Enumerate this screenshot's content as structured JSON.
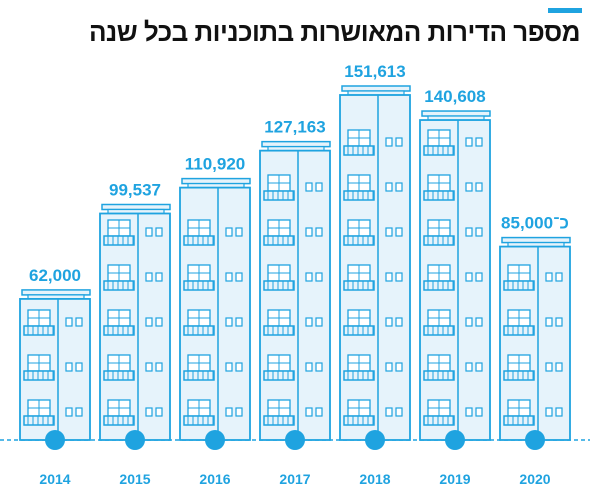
{
  "title": "מספר הדירות המאושרות בתוכניות בכל שנה",
  "colors": {
    "accent": "#1fa3e0",
    "building_fill": "#e6f3fb",
    "building_stroke": "#1fa3e0",
    "value_text": "#1fa3e0",
    "year_text": "#1fa3e0",
    "title_text": "#111111"
  },
  "chart_data": {
    "type": "bar",
    "title": "מספר הדירות המאושרות בתוכניות בכל שנה",
    "categories": [
      "2014",
      "2015",
      "2016",
      "2017",
      "2018",
      "2019",
      "2020"
    ],
    "values": [
      62000,
      99537,
      110920,
      127163,
      151613,
      140608,
      85000
    ],
    "value_labels": [
      "62,000",
      "99,537",
      "110,920",
      "127,163",
      "151,613",
      "140,608",
      "כ־85,000"
    ],
    "xlabel": "",
    "ylabel": "",
    "ylim": [
      0,
      151613
    ],
    "grid": false,
    "legend": "none"
  }
}
